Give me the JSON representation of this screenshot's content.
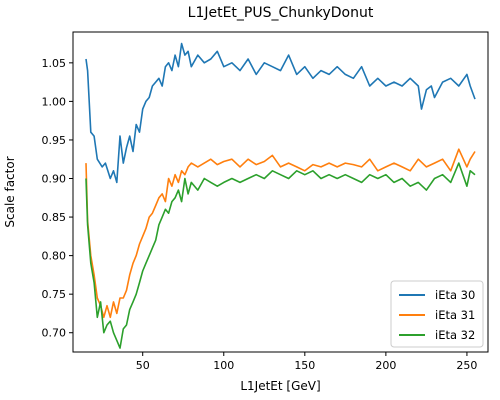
{
  "chart_data": {
    "type": "line",
    "title": "L1JetEt_PUS_ChunkyDonut",
    "xlabel": "L1JetEt [GeV]",
    "ylabel": "Scale factor",
    "xlim": [
      7,
      263
    ],
    "ylim": [
      0.675,
      1.09
    ],
    "xticks": [
      50,
      100,
      150,
      200,
      250
    ],
    "yticks": [
      0.7,
      0.75,
      0.8,
      0.85,
      0.9,
      0.95,
      1.0,
      1.05
    ],
    "grid": false,
    "legend_position": "bottom-right",
    "series": [
      {
        "name": "iEta 30",
        "color": "#1f77b4",
        "x": [
          15,
          16,
          18,
          20,
          22,
          25,
          27,
          30,
          32,
          34,
          36,
          38,
          40,
          42,
          44,
          46,
          48,
          50,
          52,
          54,
          56,
          58,
          60,
          62,
          64,
          66,
          68,
          70,
          72,
          74,
          76,
          78,
          80,
          84,
          88,
          92,
          96,
          100,
          105,
          110,
          115,
          120,
          125,
          130,
          135,
          140,
          145,
          150,
          155,
          160,
          165,
          170,
          175,
          180,
          185,
          190,
          195,
          200,
          205,
          210,
          215,
          220,
          222,
          225,
          228,
          230,
          235,
          240,
          245,
          250,
          252,
          255
        ],
        "y": [
          1.055,
          1.04,
          0.96,
          0.955,
          0.925,
          0.915,
          0.92,
          0.9,
          0.91,
          0.895,
          0.955,
          0.92,
          0.94,
          0.955,
          0.935,
          0.97,
          0.96,
          0.99,
          1.0,
          1.005,
          1.02,
          1.025,
          1.03,
          1.02,
          1.045,
          1.05,
          1.04,
          1.06,
          1.045,
          1.075,
          1.06,
          1.065,
          1.045,
          1.06,
          1.05,
          1.055,
          1.065,
          1.045,
          1.05,
          1.04,
          1.055,
          1.035,
          1.05,
          1.045,
          1.04,
          1.06,
          1.035,
          1.045,
          1.03,
          1.04,
          1.035,
          1.045,
          1.035,
          1.03,
          1.045,
          1.02,
          1.03,
          1.02,
          1.025,
          1.02,
          1.03,
          1.02,
          0.99,
          1.015,
          1.02,
          1.005,
          1.025,
          1.03,
          1.02,
          1.035,
          1.02,
          1.003
        ]
      },
      {
        "name": "iEta 31",
        "color": "#ff7f0e",
        "x": [
          15,
          16,
          18,
          20,
          22,
          24,
          26,
          28,
          30,
          32,
          34,
          36,
          38,
          40,
          42,
          44,
          46,
          48,
          50,
          52,
          54,
          56,
          58,
          60,
          62,
          64,
          66,
          68,
          70,
          72,
          74,
          76,
          78,
          80,
          84,
          88,
          92,
          96,
          100,
          105,
          110,
          115,
          120,
          125,
          130,
          135,
          140,
          145,
          150,
          155,
          160,
          165,
          170,
          175,
          180,
          185,
          190,
          195,
          200,
          205,
          210,
          215,
          220,
          225,
          230,
          235,
          240,
          245,
          250,
          252,
          255
        ],
        "y": [
          0.92,
          0.845,
          0.8,
          0.775,
          0.745,
          0.735,
          0.72,
          0.735,
          0.72,
          0.74,
          0.725,
          0.745,
          0.745,
          0.755,
          0.775,
          0.79,
          0.8,
          0.815,
          0.825,
          0.835,
          0.85,
          0.855,
          0.865,
          0.875,
          0.88,
          0.87,
          0.9,
          0.89,
          0.905,
          0.895,
          0.91,
          0.905,
          0.915,
          0.92,
          0.915,
          0.92,
          0.925,
          0.918,
          0.922,
          0.925,
          0.915,
          0.925,
          0.918,
          0.922,
          0.93,
          0.915,
          0.92,
          0.915,
          0.91,
          0.918,
          0.915,
          0.92,
          0.915,
          0.92,
          0.918,
          0.915,
          0.925,
          0.91,
          0.915,
          0.92,
          0.915,
          0.91,
          0.925,
          0.915,
          0.92,
          0.925,
          0.91,
          0.938,
          0.915,
          0.925,
          0.935
        ]
      },
      {
        "name": "iEta 32",
        "color": "#2ca02c",
        "x": [
          15,
          16,
          18,
          20,
          22,
          24,
          26,
          28,
          30,
          32,
          34,
          36,
          38,
          40,
          42,
          44,
          46,
          48,
          50,
          52,
          54,
          56,
          58,
          60,
          62,
          64,
          66,
          68,
          70,
          72,
          74,
          76,
          78,
          80,
          84,
          88,
          92,
          96,
          100,
          105,
          110,
          115,
          120,
          125,
          130,
          135,
          140,
          145,
          150,
          155,
          160,
          165,
          170,
          175,
          180,
          185,
          190,
          195,
          200,
          205,
          210,
          215,
          220,
          225,
          230,
          235,
          240,
          245,
          250,
          252,
          255
        ],
        "y": [
          0.9,
          0.84,
          0.79,
          0.765,
          0.72,
          0.74,
          0.7,
          0.71,
          0.715,
          0.7,
          0.69,
          0.68,
          0.705,
          0.71,
          0.73,
          0.74,
          0.75,
          0.765,
          0.78,
          0.79,
          0.8,
          0.81,
          0.82,
          0.84,
          0.85,
          0.86,
          0.855,
          0.87,
          0.875,
          0.885,
          0.87,
          0.9,
          0.88,
          0.895,
          0.885,
          0.9,
          0.895,
          0.89,
          0.895,
          0.9,
          0.895,
          0.9,
          0.905,
          0.9,
          0.91,
          0.905,
          0.9,
          0.91,
          0.905,
          0.91,
          0.9,
          0.905,
          0.9,
          0.905,
          0.9,
          0.895,
          0.905,
          0.9,
          0.905,
          0.895,
          0.9,
          0.89,
          0.895,
          0.885,
          0.9,
          0.905,
          0.895,
          0.92,
          0.89,
          0.91,
          0.905
        ]
      }
    ]
  }
}
